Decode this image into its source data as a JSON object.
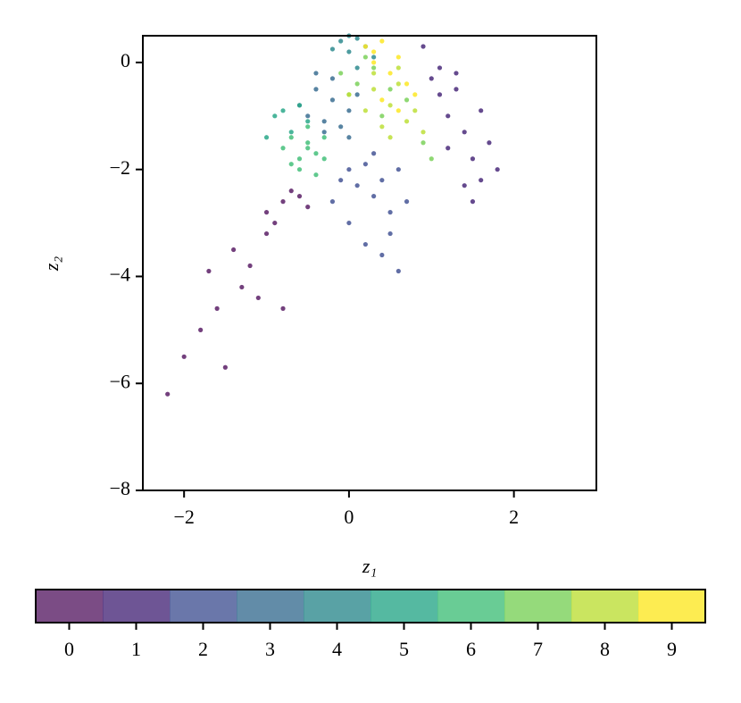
{
  "chart_data": {
    "type": "scatter",
    "xlabel": "z₁",
    "ylabel": "z₂",
    "xlim": [
      -2.5,
      3.0
    ],
    "ylim": [
      -8,
      0.5
    ],
    "xticks": [
      {
        "value": -2,
        "label": "−2"
      },
      0,
      2
    ],
    "yticks": [
      {
        "value": -8,
        "label": "−8"
      },
      {
        "value": -6,
        "label": "−6"
      },
      {
        "value": -4,
        "label": "−4"
      },
      {
        "value": -2,
        "label": "−2"
      },
      0
    ],
    "colorbar": true,
    "series": [
      {
        "name": "0",
        "color": "#5a1f66",
        "x": [
          -2.2,
          -2.0,
          -1.8,
          -1.6,
          -1.5,
          -1.3,
          -1.2,
          -1.1,
          -1.0,
          -0.9,
          -0.8,
          -0.7,
          -0.6,
          -1.4,
          -1.7,
          -1.0,
          -0.5,
          -0.8
        ],
        "y": [
          -6.2,
          -5.5,
          -5.0,
          -4.6,
          -5.7,
          -4.2,
          -3.8,
          -4.4,
          -3.2,
          -3.0,
          -2.6,
          -2.4,
          -2.5,
          -3.5,
          -3.9,
          -2.8,
          -2.7,
          -4.6
        ]
      },
      {
        "name": "1",
        "color": "#4a2a7a",
        "x": [
          0.9,
          1.0,
          1.1,
          1.2,
          1.3,
          1.4,
          1.5,
          1.6,
          1.7,
          1.8,
          1.3,
          1.5,
          1.2,
          1.6,
          1.1,
          1.4
        ],
        "y": [
          0.3,
          -0.3,
          -0.6,
          -1.0,
          -0.5,
          -1.3,
          -1.8,
          -2.2,
          -1.5,
          -2.0,
          -0.2,
          -2.6,
          -1.6,
          -0.9,
          -0.1,
          -2.3
        ]
      },
      {
        "name": "2",
        "color": "#455595",
        "x": [
          -0.2,
          0.0,
          0.1,
          0.2,
          0.3,
          0.4,
          0.5,
          0.6,
          0.0,
          0.2,
          0.4,
          0.7,
          -0.1,
          0.3,
          0.5,
          0.6
        ],
        "y": [
          -2.6,
          -2.0,
          -2.3,
          -1.9,
          -2.5,
          -2.2,
          -2.8,
          -2.0,
          -3.0,
          -3.4,
          -3.6,
          -2.6,
          -2.2,
          -1.7,
          -3.2,
          -3.9
        ]
      },
      {
        "name": "3",
        "color": "#3b6f92",
        "x": [
          -0.6,
          -0.4,
          -0.3,
          -0.2,
          -0.1,
          0.0,
          0.1,
          -0.3,
          -0.5,
          -0.2,
          0.0,
          -0.4
        ],
        "y": [
          -0.8,
          -0.5,
          -1.1,
          -0.7,
          -1.2,
          -0.9,
          -0.6,
          -1.3,
          -1.0,
          -0.3,
          -1.4,
          -0.2
        ]
      },
      {
        "name": "4",
        "color": "#2f8b8f",
        "x": [
          -0.1,
          0.0,
          0.1,
          0.2,
          0.3,
          -0.2,
          0.1,
          0.0
        ],
        "y": [
          0.4,
          0.2,
          0.45,
          0.3,
          0.1,
          0.25,
          -0.1,
          0.5
        ]
      },
      {
        "name": "5",
        "color": "#2aa88a",
        "x": [
          -0.9,
          -0.7,
          -0.6,
          -0.8,
          -0.5,
          -1.0
        ],
        "y": [
          -1.0,
          -1.3,
          -0.8,
          -0.9,
          -1.1,
          -1.4
        ]
      },
      {
        "name": "6",
        "color": "#44bf7a",
        "x": [
          -0.8,
          -0.7,
          -0.6,
          -0.5,
          -0.4,
          -0.3,
          -0.6,
          -0.4,
          -0.5,
          -0.7,
          -0.3,
          -0.5
        ],
        "y": [
          -1.6,
          -1.4,
          -1.8,
          -1.5,
          -1.7,
          -1.4,
          -2.0,
          -2.1,
          -1.2,
          -1.9,
          -1.8,
          -1.6
        ]
      },
      {
        "name": "7",
        "color": "#7bd15a",
        "x": [
          -0.1,
          0.1,
          0.3,
          0.5,
          0.7,
          0.2,
          0.4,
          0.9,
          1.0,
          0.0
        ],
        "y": [
          -0.2,
          -0.4,
          -0.1,
          -0.5,
          -0.7,
          0.1,
          -1.0,
          -1.5,
          -1.8,
          -0.6
        ]
      },
      {
        "name": "8",
        "color": "#bddf38",
        "x": [
          0.0,
          0.2,
          0.3,
          0.4,
          0.5,
          0.6,
          0.7,
          0.8,
          0.3,
          0.5,
          0.9,
          0.6
        ],
        "y": [
          -0.6,
          -0.9,
          -0.5,
          -1.2,
          -0.8,
          -0.4,
          -1.1,
          -0.9,
          -0.2,
          -1.4,
          -1.3,
          -0.1
        ]
      },
      {
        "name": "9",
        "color": "#fde725",
        "x": [
          0.2,
          0.3,
          0.4,
          0.5,
          0.6,
          0.7,
          0.8,
          0.4,
          0.6,
          0.3
        ],
        "y": [
          0.3,
          0.0,
          0.4,
          -0.2,
          0.1,
          -0.4,
          -0.6,
          -0.7,
          -0.9,
          0.2
        ]
      }
    ]
  }
}
